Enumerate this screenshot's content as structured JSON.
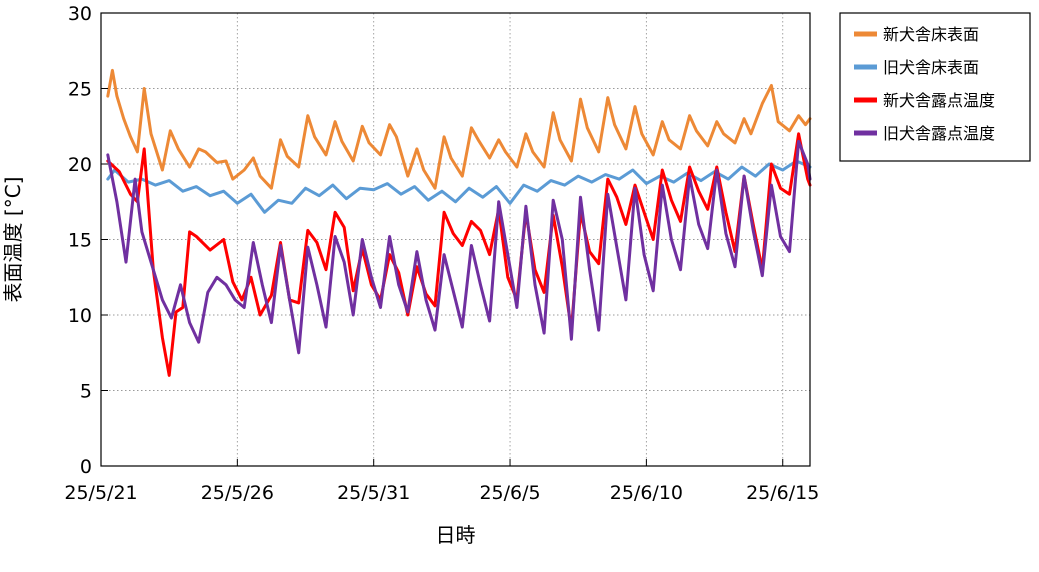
{
  "chart_data": {
    "type": "line",
    "xlabel": "日時",
    "ylabel": "表面温度 [°C]",
    "ylim": [
      0,
      30
    ],
    "xlim": [
      "25/5/21",
      "25/6/16"
    ],
    "yticks": [
      "0",
      "5",
      "10",
      "15",
      "20",
      "25",
      "30"
    ],
    "xticks": [
      {
        "date": "25/5/21",
        "label": "25/5/21"
      },
      {
        "date": "25/5/26",
        "label": "25/5/26"
      },
      {
        "date": "25/5/31",
        "label": "25/5/31"
      },
      {
        "date": "25/6/5",
        "label": "25/6/5"
      },
      {
        "date": "25/6/10",
        "label": "25/6/10"
      },
      {
        "date": "25/6/15",
        "label": "25/6/15"
      }
    ],
    "grid": true,
    "legend_position": "right",
    "series": [
      {
        "name": "新犬舎床表面",
        "color": "#ED8936",
        "x": [
          "25/5/21 06:00",
          "25/5/21 10:00",
          "25/5/21 14:00",
          "25/5/21 20:00",
          "25/5/22 02:00",
          "25/5/22 08:00",
          "25/5/22 14:00",
          "25/5/22 20:00",
          "25/5/23 06:00",
          "25/5/23 13:00",
          "25/5/23 20:00",
          "25/5/24 06:00",
          "25/5/24 14:00",
          "25/5/24 20:00",
          "25/5/25 06:00",
          "25/5/25 14:00",
          "25/5/25 20:00",
          "25/5/26 06:00",
          "25/5/26 14:00",
          "25/5/26 20:00",
          "25/5/27 06:00",
          "25/5/27 14:00",
          "25/5/27 20:00",
          "25/5/28 06:00",
          "25/5/28 14:00",
          "25/5/28 20:00",
          "25/5/29 06:00",
          "25/5/29 14:00",
          "25/5/29 20:00",
          "25/5/30 06:00",
          "25/5/30 14:00",
          "25/5/30 20:00",
          "25/5/31 06:00",
          "25/5/31 14:00",
          "25/5/31 20:00",
          "25/6/1 06:00",
          "25/6/1 14:00",
          "25/6/1 20:00",
          "25/6/2 06:00",
          "25/6/2 14:00",
          "25/6/2 20:00",
          "25/6/3 06:00",
          "25/6/3 14:00",
          "25/6/3 20:00",
          "25/6/4 06:00",
          "25/6/4 14:00",
          "25/6/4 20:00",
          "25/6/5 06:00",
          "25/6/5 14:00",
          "25/6/5 20:00",
          "25/6/6 06:00",
          "25/6/6 14:00",
          "25/6/6 20:00",
          "25/6/7 06:00",
          "25/6/7 14:00",
          "25/6/7 20:00",
          "25/6/8 06:00",
          "25/6/8 14:00",
          "25/6/8 20:00",
          "25/6/9 06:00",
          "25/6/9 14:00",
          "25/6/9 20:00",
          "25/6/10 06:00",
          "25/6/10 14:00",
          "25/6/10 20:00",
          "25/6/11 06:00",
          "25/6/11 14:00",
          "25/6/11 20:00",
          "25/6/12 06:00",
          "25/6/12 14:00",
          "25/6/12 20:00",
          "25/6/13 06:00",
          "25/6/13 14:00",
          "25/6/13 20:00",
          "25/6/14 06:00",
          "25/6/14 14:00",
          "25/6/14 20:00",
          "25/6/15 06:00",
          "25/6/15 14:00",
          "25/6/15 20:00",
          "25/6/16 00:00"
        ],
        "y": [
          24.5,
          26.2,
          24.5,
          23.0,
          21.8,
          20.8,
          25.0,
          22.0,
          19.6,
          22.2,
          21.0,
          19.8,
          21.0,
          20.8,
          20.1,
          20.2,
          19.0,
          19.6,
          20.4,
          19.2,
          18.4,
          21.6,
          20.5,
          19.8,
          23.2,
          21.8,
          20.6,
          22.8,
          21.5,
          20.2,
          22.5,
          21.4,
          20.6,
          22.6,
          21.8,
          19.2,
          21.0,
          19.6,
          18.4,
          21.8,
          20.4,
          19.2,
          22.4,
          21.6,
          20.4,
          21.6,
          20.8,
          19.8,
          22.0,
          20.8,
          19.8,
          23.4,
          21.6,
          20.2,
          24.3,
          22.4,
          20.8,
          24.4,
          22.6,
          21.0,
          23.8,
          22.0,
          20.6,
          22.8,
          21.6,
          21.0,
          23.2,
          22.2,
          21.2,
          22.8,
          22.0,
          21.4,
          23.0,
          22.0,
          24.0,
          25.2,
          22.8,
          22.2,
          23.2,
          22.6,
          23.0
        ]
      },
      {
        "name": "旧犬舎床表面",
        "color": "#5B9BD5",
        "x": [
          "25/5/21 06:00",
          "25/5/21 12:00",
          "25/5/22 00:00",
          "25/5/22 12:00",
          "25/5/23 00:00",
          "25/5/23 12:00",
          "25/5/24 00:00",
          "25/5/24 12:00",
          "25/5/25 00:00",
          "25/5/25 12:00",
          "25/5/26 00:00",
          "25/5/26 12:00",
          "25/5/27 00:00",
          "25/5/27 12:00",
          "25/5/28 00:00",
          "25/5/28 12:00",
          "25/5/29 00:00",
          "25/5/29 12:00",
          "25/5/30 00:00",
          "25/5/30 12:00",
          "25/5/31 00:00",
          "25/5/31 12:00",
          "25/6/1 00:00",
          "25/6/1 12:00",
          "25/6/2 00:00",
          "25/6/2 12:00",
          "25/6/3 00:00",
          "25/6/3 12:00",
          "25/6/4 00:00",
          "25/6/4 12:00",
          "25/6/5 00:00",
          "25/6/5 12:00",
          "25/6/6 00:00",
          "25/6/6 12:00",
          "25/6/7 00:00",
          "25/6/7 12:00",
          "25/6/8 00:00",
          "25/6/8 12:00",
          "25/6/9 00:00",
          "25/6/9 12:00",
          "25/6/10 00:00",
          "25/6/10 12:00",
          "25/6/11 00:00",
          "25/6/11 12:00",
          "25/6/12 00:00",
          "25/6/12 12:00",
          "25/6/13 00:00",
          "25/6/13 12:00",
          "25/6/14 00:00",
          "25/6/14 12:00",
          "25/6/15 00:00",
          "25/6/15 12:00",
          "25/6/16 00:00"
        ],
        "y": [
          19.0,
          19.6,
          18.8,
          19.0,
          18.6,
          18.9,
          18.2,
          18.5,
          17.9,
          18.2,
          17.4,
          18.0,
          16.8,
          17.6,
          17.4,
          18.4,
          17.9,
          18.6,
          17.7,
          18.4,
          18.3,
          18.7,
          18.0,
          18.5,
          17.6,
          18.2,
          17.5,
          18.4,
          17.8,
          18.5,
          17.4,
          18.6,
          18.2,
          18.9,
          18.6,
          19.2,
          18.8,
          19.3,
          19.0,
          19.6,
          18.7,
          19.2,
          18.8,
          19.4,
          18.9,
          19.5,
          19.0,
          19.8,
          19.2,
          20.0,
          19.6,
          20.2,
          19.8
        ]
      },
      {
        "name": "新犬舎露点温度",
        "color": "#FF0000",
        "x": [
          "25/5/21 06:00",
          "25/5/21 16:00",
          "25/5/22 02:00",
          "25/5/22 08:00",
          "25/5/22 14:00",
          "25/5/22 22:00",
          "25/5/23 06:00",
          "25/5/23 12:00",
          "25/5/23 18:00",
          "25/5/24 00:00",
          "25/5/24 06:00",
          "25/5/24 12:00",
          "25/5/25 00:00",
          "25/5/25 12:00",
          "25/5/25 20:00",
          "25/5/26 04:00",
          "25/5/26 12:00",
          "25/5/26 20:00",
          "25/5/27 06:00",
          "25/5/27 14:00",
          "25/5/27 22:00",
          "25/5/28 06:00",
          "25/5/28 14:00",
          "25/5/28 22:00",
          "25/5/29 06:00",
          "25/5/29 14:00",
          "25/5/29 22:00",
          "25/5/30 06:00",
          "25/5/30 14:00",
          "25/5/30 22:00",
          "25/5/31 06:00",
          "25/5/31 14:00",
          "25/5/31 22:00",
          "25/6/1 06:00",
          "25/6/1 14:00",
          "25/6/1 22:00",
          "25/6/2 06:00",
          "25/6/2 14:00",
          "25/6/2 22:00",
          "25/6/3 06:00",
          "25/6/3 14:00",
          "25/6/3 22:00",
          "25/6/4 06:00",
          "25/6/4 14:00",
          "25/6/4 22:00",
          "25/6/5 06:00",
          "25/6/5 14:00",
          "25/6/5 22:00",
          "25/6/6 06:00",
          "25/6/6 14:00",
          "25/6/6 22:00",
          "25/6/7 06:00",
          "25/6/7 14:00",
          "25/6/7 22:00",
          "25/6/8 06:00",
          "25/6/8 14:00",
          "25/6/8 22:00",
          "25/6/9 06:00",
          "25/6/9 14:00",
          "25/6/9 22:00",
          "25/6/10 06:00",
          "25/6/10 14:00",
          "25/6/10 22:00",
          "25/6/11 06:00",
          "25/6/11 14:00",
          "25/6/11 22:00",
          "25/6/12 06:00",
          "25/6/12 14:00",
          "25/6/12 22:00",
          "25/6/13 06:00",
          "25/6/13 14:00",
          "25/6/13 22:00",
          "25/6/14 06:00",
          "25/6/14 14:00",
          "25/6/14 22:00",
          "25/6/15 06:00",
          "25/6/15 14:00",
          "25/6/15 22:00",
          "25/6/16 00:00"
        ],
        "y": [
          20.2,
          19.5,
          18.0,
          17.5,
          21.0,
          13.0,
          8.5,
          6.0,
          10.2,
          10.5,
          15.5,
          15.2,
          14.3,
          15.0,
          12.2,
          11.0,
          12.5,
          10.0,
          11.3,
          14.8,
          11.0,
          10.8,
          15.6,
          14.8,
          13.0,
          16.8,
          15.8,
          11.6,
          14.4,
          12.0,
          11.0,
          14.0,
          12.8,
          10.0,
          13.2,
          11.4,
          10.6,
          16.8,
          15.4,
          14.6,
          16.2,
          15.6,
          14.0,
          17.0,
          12.5,
          11.0,
          16.8,
          13.0,
          11.5,
          16.6,
          13.2,
          9.0,
          16.8,
          14.2,
          13.4,
          19.0,
          17.8,
          16.0,
          18.6,
          16.8,
          15.0,
          19.6,
          17.6,
          16.2,
          19.8,
          18.2,
          17.0,
          19.8,
          16.8,
          14.2,
          19.2,
          16.0,
          13.0,
          20.0,
          18.4,
          18.0,
          22.0,
          19.0,
          18.6
        ]
      },
      {
        "name": "旧犬舎露点温度",
        "color": "#7030A0",
        "x": [
          "25/5/21 06:00",
          "25/5/21 14:00",
          "25/5/21 22:00",
          "25/5/22 06:00",
          "25/5/22 12:00",
          "25/5/22 20:00",
          "25/5/23 06:00",
          "25/5/23 14:00",
          "25/5/23 22:00",
          "25/5/24 06:00",
          "25/5/24 14:00",
          "25/5/24 22:00",
          "25/5/25 06:00",
          "25/5/25 14:00",
          "25/5/25 22:00",
          "25/5/26 06:00",
          "25/5/26 14:00",
          "25/5/26 22:00",
          "25/5/27 06:00",
          "25/5/27 14:00",
          "25/5/27 22:00",
          "25/5/28 06:00",
          "25/5/28 14:00",
          "25/5/28 22:00",
          "25/5/29 06:00",
          "25/5/29 14:00",
          "25/5/29 22:00",
          "25/5/30 06:00",
          "25/5/30 14:00",
          "25/5/30 22:00",
          "25/5/31 06:00",
          "25/5/31 14:00",
          "25/5/31 22:00",
          "25/6/1 06:00",
          "25/6/1 14:00",
          "25/6/1 22:00",
          "25/6/2 06:00",
          "25/6/2 14:00",
          "25/6/2 22:00",
          "25/6/3 06:00",
          "25/6/3 14:00",
          "25/6/3 22:00",
          "25/6/4 06:00",
          "25/6/4 14:00",
          "25/6/4 22:00",
          "25/6/5 06:00",
          "25/6/5 14:00",
          "25/6/5 22:00",
          "25/6/6 06:00",
          "25/6/6 14:00",
          "25/6/6 22:00",
          "25/6/7 06:00",
          "25/6/7 14:00",
          "25/6/7 22:00",
          "25/6/8 06:00",
          "25/6/8 14:00",
          "25/6/8 22:00",
          "25/6/9 06:00",
          "25/6/9 14:00",
          "25/6/9 22:00",
          "25/6/10 06:00",
          "25/6/10 14:00",
          "25/6/10 22:00",
          "25/6/11 06:00",
          "25/6/11 14:00",
          "25/6/11 22:00",
          "25/6/12 06:00",
          "25/6/12 14:00",
          "25/6/12 22:00",
          "25/6/13 06:00",
          "25/6/13 14:00",
          "25/6/13 22:00",
          "25/6/14 06:00",
          "25/6/14 14:00",
          "25/6/14 22:00",
          "25/6/15 06:00",
          "25/6/15 14:00",
          "25/6/15 22:00",
          "25/6/16 00:00"
        ],
        "y": [
          20.6,
          17.5,
          13.5,
          19.0,
          15.5,
          13.5,
          11.0,
          9.8,
          12.0,
          9.5,
          8.2,
          11.5,
          12.5,
          12.0,
          11.0,
          10.5,
          14.8,
          12.0,
          9.5,
          14.6,
          11.0,
          7.5,
          14.5,
          12.0,
          9.2,
          15.2,
          13.5,
          10.0,
          15.0,
          12.5,
          10.5,
          15.2,
          12.0,
          10.2,
          14.2,
          11.0,
          9.0,
          14.0,
          11.6,
          9.2,
          14.6,
          12.0,
          9.6,
          17.5,
          14.0,
          10.5,
          17.2,
          12.0,
          8.8,
          17.6,
          15.0,
          8.4,
          17.8,
          13.0,
          9.0,
          18.0,
          14.5,
          11.0,
          18.4,
          14.0,
          11.6,
          18.6,
          15.0,
          13.0,
          19.2,
          16.0,
          14.4,
          19.6,
          15.4,
          13.2,
          19.2,
          15.6,
          12.6,
          18.6,
          15.2,
          14.2,
          21.5,
          20.0,
          19.0
        ]
      }
    ]
  }
}
